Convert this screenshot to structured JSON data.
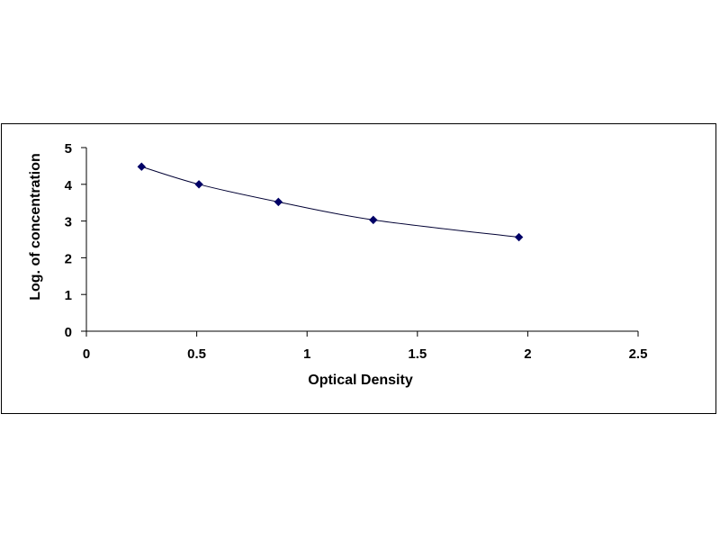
{
  "chart_data": {
    "type": "scatter",
    "title": "",
    "xlabel": "Optical Density",
    "ylabel": "Log. of concentration",
    "xlim": [
      0,
      2.5
    ],
    "ylim": [
      0,
      5
    ],
    "x_ticks": [
      "0",
      "0.5",
      "1",
      "1.5",
      "2",
      "2.5"
    ],
    "y_ticks": [
      "0",
      "1",
      "2",
      "3",
      "4",
      "5"
    ],
    "grid": false,
    "legend": "none",
    "series": [
      {
        "marker": "diamond",
        "color": "#000066",
        "line": "smooth fitted curve",
        "points": [
          {
            "x": 0.25,
            "y": 4.48
          },
          {
            "x": 0.51,
            "y": 4.0
          },
          {
            "x": 0.87,
            "y": 3.52
          },
          {
            "x": 1.3,
            "y": 3.03
          },
          {
            "x": 1.96,
            "y": 2.56
          }
        ]
      }
    ]
  }
}
